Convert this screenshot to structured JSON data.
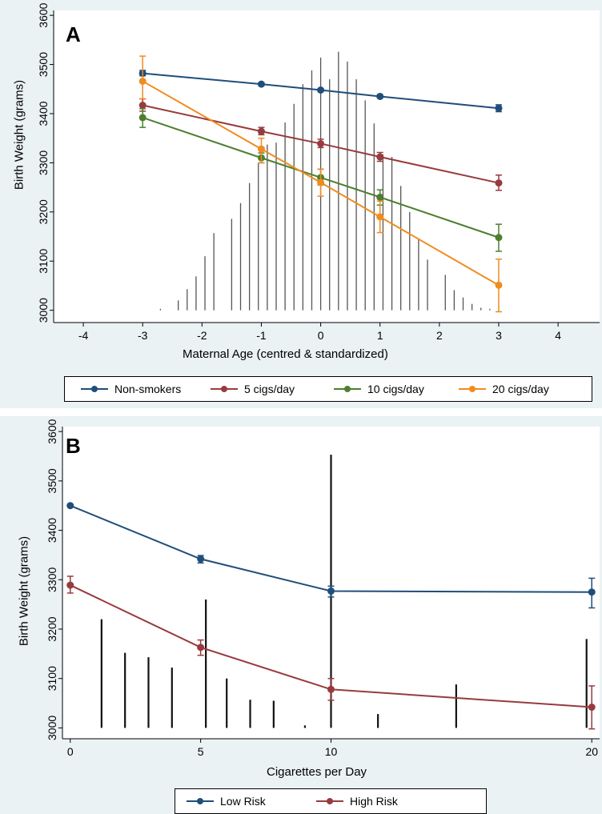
{
  "chart_data": [
    {
      "panel": "A",
      "type": "line",
      "xlabel": "Maternal Age (centred & standardized)",
      "ylabel": "Birth Weight (grams)",
      "xlim": [
        -4.5,
        4.7
      ],
      "ylim": [
        2975,
        3610
      ],
      "xticks": [
        -4,
        -3,
        -2,
        -1,
        0,
        1,
        2,
        3,
        4
      ],
      "yticks": [
        3000,
        3100,
        3200,
        3300,
        3400,
        3500,
        3600
      ],
      "x": [
        -3,
        -1,
        0,
        1,
        3
      ],
      "series": [
        {
          "name": "Non-smokers",
          "color": "#1f4e79",
          "values": [
            3482,
            3460,
            3448,
            3435,
            3411
          ],
          "err_low": [
            3477,
            3457,
            3445,
            3432,
            3404
          ],
          "err_high": [
            3488,
            3463,
            3451,
            3438,
            3418
          ]
        },
        {
          "name": "5 cigs/day",
          "color": "#973b3f",
          "values": [
            3417,
            3364,
            3339,
            3312,
            3259
          ],
          "err_low": [
            3405,
            3357,
            3331,
            3303,
            3244
          ],
          "err_high": [
            3430,
            3372,
            3348,
            3321,
            3275
          ]
        },
        {
          "name": "10 cigs/day",
          "color": "#4d7f2e",
          "values": [
            3392,
            3310,
            3270,
            3230,
            3148
          ],
          "err_low": [
            3372,
            3300,
            3255,
            3214,
            3120
          ],
          "err_high": [
            3410,
            3320,
            3287,
            3245,
            3175
          ]
        },
        {
          "name": "20 cigs/day",
          "color": "#f08c1e",
          "values": [
            3466,
            3328,
            3260,
            3190,
            3051
          ],
          "err_low": [
            3430,
            3300,
            3232,
            3158,
            2997
          ],
          "err_high": [
            3517,
            3350,
            3287,
            3222,
            3104
          ]
        }
      ],
      "histogram": {
        "color": "#555555",
        "x": [
          -2.7,
          -2.4,
          -2.25,
          -2.1,
          -1.95,
          -1.8,
          -1.5,
          -1.35,
          -1.2,
          -1.05,
          -0.9,
          -0.75,
          -0.6,
          -0.45,
          -0.3,
          -0.15,
          0,
          0.15,
          0.3,
          0.45,
          0.6,
          0.75,
          0.9,
          1.05,
          1.2,
          1.35,
          1.5,
          1.65,
          1.8,
          2.1,
          2.25,
          2.4,
          2.55,
          2.7,
          2.85,
          3.0
        ],
        "heights": [
          3003,
          3020,
          3043,
          3069,
          3110,
          3157,
          3186,
          3218,
          3259,
          3300,
          3337,
          3341,
          3382,
          3420,
          3460,
          3488,
          3514,
          3470,
          3526,
          3506,
          3470,
          3427,
          3380,
          3317,
          3312,
          3253,
          3200,
          3146,
          3103,
          3072,
          3041,
          3026,
          3013,
          3005,
          3003,
          3001
        ]
      },
      "legend": {
        "position": "bottom",
        "entries": [
          "Non-smokers",
          "5 cigs/day",
          "10 cigs/day",
          "20 cigs/day"
        ]
      }
    },
    {
      "panel": "B",
      "type": "line",
      "xlabel": "Cigarettes per Day",
      "ylabel": "Birth Weight (grams)",
      "xlim": [
        -0.3,
        20.3
      ],
      "ylim": [
        2978,
        3610
      ],
      "xticks": [
        0,
        5,
        10,
        20
      ],
      "yticks": [
        3000,
        3100,
        3200,
        3300,
        3400,
        3500,
        3600
      ],
      "x": [
        0,
        5,
        10,
        20
      ],
      "series": [
        {
          "name": "Low Risk",
          "color": "#1f4e79",
          "values": [
            3450,
            3342,
            3277,
            3275
          ],
          "err_low": [
            3449,
            3334,
            3265,
            3243
          ],
          "err_high": [
            3451,
            3349,
            3287,
            3303
          ]
        },
        {
          "name": "High Risk",
          "color": "#973b3f",
          "values": [
            3289,
            3163,
            3078,
            3042
          ],
          "err_low": [
            3273,
            3147,
            3056,
            2998
          ],
          "err_high": [
            3307,
            3178,
            3100,
            3085
          ]
        }
      ],
      "histogram": {
        "color": "#111111",
        "x": [
          1.2,
          2.1,
          3,
          3.9,
          5.2,
          6,
          6.9,
          7.8,
          9,
          10,
          11.8,
          14.8,
          19.8
        ],
        "heights": [
          3220,
          3152,
          3143,
          3122,
          3260,
          3100,
          3057,
          3055,
          3005,
          3553,
          3028,
          3088,
          3180
        ]
      },
      "legend": {
        "position": "bottom",
        "entries": [
          "Low Risk",
          "High Risk"
        ]
      }
    }
  ],
  "panels": {
    "a": {
      "letter": "A",
      "xlabel": "Maternal Age (centred & standardized)",
      "ylabel": "Birth Weight (grams)",
      "legend": [
        {
          "label": "Non-smokers",
          "color": "#1f4e79"
        },
        {
          "label": "5 cigs/day",
          "color": "#973b3f"
        },
        {
          "label": "10 cigs/day",
          "color": "#4d7f2e"
        },
        {
          "label": "20 cigs/day",
          "color": "#f08c1e"
        }
      ]
    },
    "b": {
      "letter": "B",
      "xlabel": "Cigarettes per Day",
      "ylabel": "Birth Weight (grams)",
      "legend": [
        {
          "label": "Low Risk",
          "color": "#1f4e79"
        },
        {
          "label": "High Risk",
          "color": "#973b3f"
        }
      ]
    }
  }
}
